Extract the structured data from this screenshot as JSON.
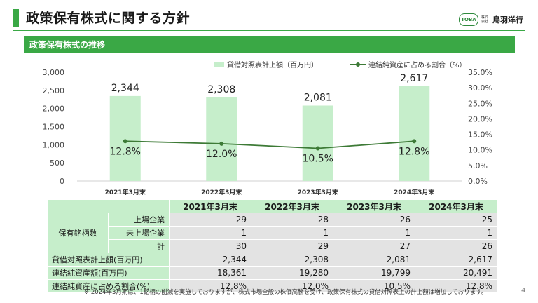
{
  "header": {
    "title": "政策保有株式に関する方針"
  },
  "logo": {
    "mark": "TOBA",
    "small_text": "株式会社",
    "name": "鳥羽洋行"
  },
  "section": {
    "title": "政策保有株式の推移"
  },
  "legend": {
    "bar": "貸借対照表計上額（百万円）",
    "line": "連結純資産に占める割合（%）"
  },
  "chart_data": {
    "type": "bar",
    "categories": [
      "2021年3月末",
      "2022年3月末",
      "2023年3月末",
      "2024年3月末"
    ],
    "series": [
      {
        "name": "貸借対照表計上額（百万円）",
        "type": "bar",
        "axis": "left",
        "values": [
          2344,
          2308,
          2081,
          2617
        ],
        "labels": [
          "2,344",
          "2,308",
          "2,081",
          "2,617"
        ]
      },
      {
        "name": "連結純資産に占める割合（%）",
        "type": "line",
        "axis": "right",
        "values": [
          12.8,
          12.0,
          10.5,
          12.8
        ],
        "labels": [
          "12.8%",
          "12.0%",
          "10.5%",
          "12.8%"
        ]
      }
    ],
    "y_left": {
      "min": 0,
      "max": 3000,
      "ticks": [
        "3,000",
        "2,500",
        "2,000",
        "1,500",
        "1,000",
        "500",
        "0"
      ]
    },
    "y_right": {
      "min": 0,
      "max": 35,
      "ticks": [
        "35.0%",
        "30.0%",
        "25.0%",
        "20.0%",
        "15.0%",
        "10.0%",
        "5.0%",
        "0.0%"
      ]
    },
    "legend_position": "top",
    "grid": false
  },
  "table": {
    "headers": [
      "2021年3月末",
      "2022年3月末",
      "2023年3月末",
      "2024年3月末"
    ],
    "group_label": "保有銘柄数",
    "rows": [
      {
        "label": "上場企業",
        "values": [
          "29",
          "28",
          "26",
          "25"
        ]
      },
      {
        "label": "未上場企業",
        "values": [
          "1",
          "1",
          "1",
          "1"
        ]
      },
      {
        "label": "計",
        "values": [
          "30",
          "29",
          "27",
          "26"
        ]
      },
      {
        "label": "貸借対照表計上額(百万円)",
        "values": [
          "2,344",
          "2,308",
          "2,081",
          "2,617"
        ]
      },
      {
        "label": "連結純資産額(百万円)",
        "values": [
          "18,361",
          "19,280",
          "19,799",
          "20,491"
        ]
      },
      {
        "label": "連結純資産に占める割合(%)",
        "values": [
          "12.8%",
          "12.0%",
          "10.5%",
          "12.8%"
        ]
      }
    ]
  },
  "footnote": "※ 2024年3月期は、1銘柄の削減を実施しておりますが、株式市場全般の株価高騰を受け、政策保有株式の貸借対照表上の計上額は増加しております。",
  "page_number": "4",
  "colors": {
    "accent": "#3aa845",
    "bar": "#c6eecb",
    "line": "#3d7a36",
    "table_label_bg": "#c6eecb",
    "table_value_bg": "#e3e3e3"
  }
}
